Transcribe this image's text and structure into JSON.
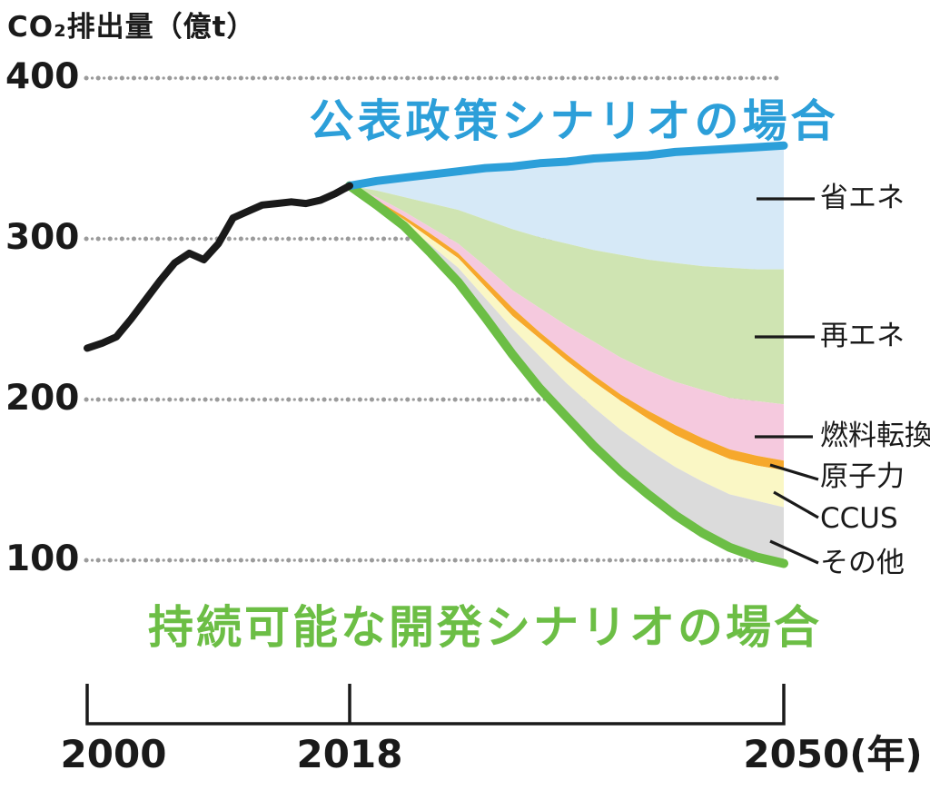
{
  "title": "CO₂排出量（億t）",
  "scenario_labels": {
    "announced_policies": "公表政策シナリオの場合",
    "sustainable_development": "持続可能な開発シナリオの場合"
  },
  "colors": {
    "announced_line": "#2c9fd9",
    "sustainable_line": "#6cbe45",
    "historical_line": "#1a1a1a",
    "grid_dots": "#9b9b9b",
    "axis": "#1a1a1a"
  },
  "legend": [
    {
      "label": "省エネ",
      "color": "#d6e9f7"
    },
    {
      "label": "再エネ",
      "color": "#cfe4b2"
    },
    {
      "label": "燃料転換",
      "color": "#f5c9de"
    },
    {
      "label": "原子力",
      "color": "#f6a82c"
    },
    {
      "label": "CCUS",
      "color": "#faf7c5"
    },
    {
      "label": "その他",
      "color": "#dbdbdb"
    }
  ],
  "chart_data": {
    "type": "area",
    "title": "CO₂排出量（億t）",
    "ylabel": "CO₂排出量（億t）",
    "xlabel": "年",
    "unit": "億t",
    "ylim": [
      60,
      415
    ],
    "yticks": [
      400,
      300,
      200,
      100
    ],
    "xticks": [
      {
        "label": "2000",
        "year": 2000
      },
      {
        "label": "2018",
        "year": 2018
      },
      {
        "label": "2050(年)",
        "year": 2050
      }
    ],
    "grid": "dotted horizontal lines at each ytick",
    "legend_position": "right",
    "historical": {
      "years": [
        2000,
        2001,
        2002,
        2003,
        2004,
        2005,
        2006,
        2007,
        2008,
        2009,
        2010,
        2011,
        2012,
        2013,
        2014,
        2015,
        2016,
        2017,
        2018
      ],
      "values": [
        232,
        235,
        239,
        250,
        262,
        274,
        285,
        291,
        287,
        297,
        313,
        317,
        321,
        322,
        323,
        322,
        324,
        328,
        333
      ]
    },
    "projection": {
      "years": [
        2018,
        2020,
        2022,
        2024,
        2026,
        2028,
        2030,
        2032,
        2034,
        2036,
        2038,
        2040,
        2042,
        2044,
        2046,
        2048,
        2050
      ],
      "announced_policies_scenario": [
        333,
        336,
        338,
        340,
        342,
        344,
        345,
        347,
        348,
        350,
        351,
        352,
        354,
        355,
        356,
        357,
        358
      ],
      "wedge_bottom_boundaries": {
        "省エネ": [
          333,
          330,
          326,
          322,
          318,
          312,
          306,
          301,
          297,
          293,
          290,
          287,
          285,
          283,
          282,
          281,
          281
        ],
        "再エネ": [
          333,
          326,
          317,
          307,
          297,
          283,
          268,
          257,
          246,
          236,
          226,
          218,
          211,
          206,
          201,
          199,
          197
        ],
        "燃料転換": [
          333,
          324,
          314,
          303,
          291,
          274,
          257,
          242,
          228,
          215,
          203,
          193,
          184,
          176,
          169,
          165,
          162
        ],
        "原子力": [
          333,
          323,
          312,
          300,
          288,
          270,
          252,
          238,
          224,
          211,
          199,
          188,
          178,
          170,
          163,
          159,
          156
        ],
        "CCUS": [
          333,
          322,
          310,
          296,
          282,
          263,
          244,
          227,
          210,
          195,
          181,
          169,
          158,
          149,
          141,
          137,
          133
        ],
        "その他": [
          333,
          321,
          308,
          291,
          273,
          251,
          228,
          207,
          189,
          171,
          155,
          141,
          128,
          117,
          108,
          102,
          98
        ]
      },
      "sustainable_development_scenario": [
        333,
        321,
        308,
        291,
        273,
        251,
        228,
        207,
        189,
        171,
        155,
        141,
        128,
        117,
        108,
        102,
        98
      ]
    }
  }
}
